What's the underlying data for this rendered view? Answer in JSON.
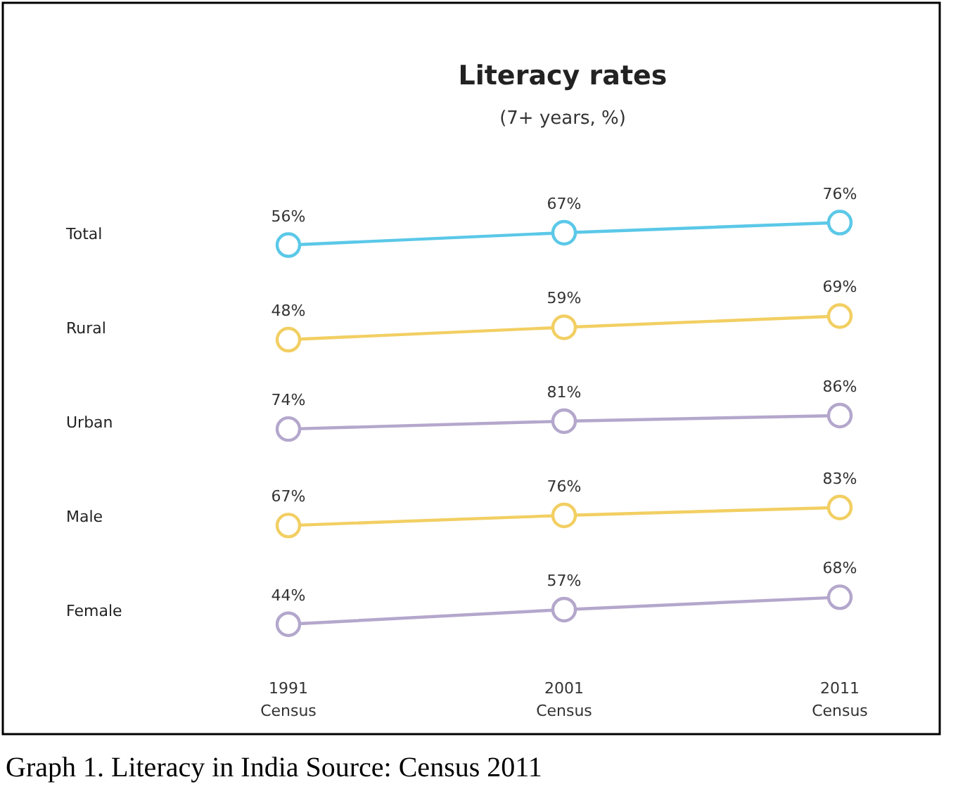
{
  "chart_data": [
    {
      "type": "line",
      "title": "Literacy rates",
      "subtitle": "(7+ years, %)",
      "categories": [
        null,
        null,
        null
      ],
      "marker": "circle",
      "line_style": "solid",
      "series": [
        {
          "name": "Total",
          "color": "#5bc8e8",
          "values": [
            56,
            67,
            76
          ],
          "value_labels": [
            "56%",
            "67%",
            "76%"
          ]
        }
      ]
    },
    {
      "type": "line",
      "categories": [
        null,
        null,
        null
      ],
      "marker": "circle",
      "line_style": "solid",
      "series": [
        {
          "name": "Rural",
          "color": "#f2cf63",
          "values": [
            48,
            59,
            69
          ],
          "value_labels": [
            "48%",
            "59%",
            "69%"
          ]
        }
      ]
    },
    {
      "type": "line",
      "categories": [
        null,
        null,
        null
      ],
      "marker": "circle",
      "line_style": "solid",
      "series": [
        {
          "name": "Urban",
          "color": "#b4a7cc",
          "values": [
            74,
            81,
            86
          ],
          "value_labels": [
            "74%",
            "81%",
            "86%"
          ]
        }
      ]
    },
    {
      "type": "line",
      "categories": [
        null,
        null,
        null
      ],
      "marker": "circle",
      "line_style": "solid",
      "series": [
        {
          "name": "Male",
          "color": "#f2cf63",
          "values": [
            67,
            76,
            83
          ],
          "value_labels": [
            "67%",
            "76%",
            "83%"
          ]
        }
      ]
    },
    {
      "type": "line",
      "categories": [
        "1991\nCensus",
        "2001\nCensus",
        "2011\nCensus"
      ],
      "tick_labels": "x",
      "marker": "circle",
      "line_style": "solid",
      "series": [
        {
          "name": "Female",
          "color": "#b4a7cc",
          "values": [
            44,
            57,
            68
          ],
          "value_labels": [
            "44%",
            "57%",
            "68%"
          ]
        }
      ],
      "annotations": [
        "Graph 1. Literacy in India  Source: Census 2011"
      ]
    }
  ]
}
